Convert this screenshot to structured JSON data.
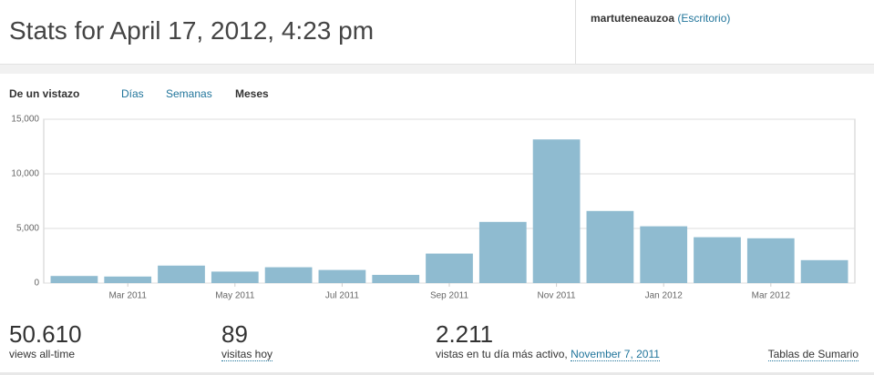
{
  "header": {
    "title": "Stats for April 17, 2012, 4:23 pm"
  },
  "user": {
    "name": "martuteneauzoa",
    "link": "(Escritorio)"
  },
  "tabs": [
    "De un vistazo",
    "Días",
    "Semanas",
    "Meses"
  ],
  "chart_data": {
    "type": "bar",
    "categories": [
      null,
      "Mar 2011",
      null,
      "May 2011",
      null,
      "Jul 2011",
      null,
      "Sep 2011",
      null,
      "Nov 2011",
      null,
      "Jan 2012",
      null,
      "Mar 2012",
      null
    ],
    "values": [
      650,
      600,
      1600,
      1050,
      1450,
      1200,
      750,
      2700,
      5600,
      13150,
      6600,
      5200,
      4200,
      4100,
      2100
    ],
    "color": "#8fbbd0",
    "ylim": [
      0,
      15000
    ],
    "yticks": [
      0,
      {
        "value": 5000,
        "label": "5,000"
      },
      {
        "value": 10000,
        "label": "10,000"
      },
      {
        "value": 15000,
        "label": "15,000"
      }
    ],
    "grid": true
  },
  "stats": [
    {
      "value": "50.610",
      "label": "views all-time"
    },
    {
      "value": "89",
      "label": "visitas hoy"
    },
    {
      "value": "2.211",
      "label": "vistas en tu día más activo,",
      "link": "November 7, 2011"
    }
  ],
  "summary_link": "Tablas de Sumario"
}
